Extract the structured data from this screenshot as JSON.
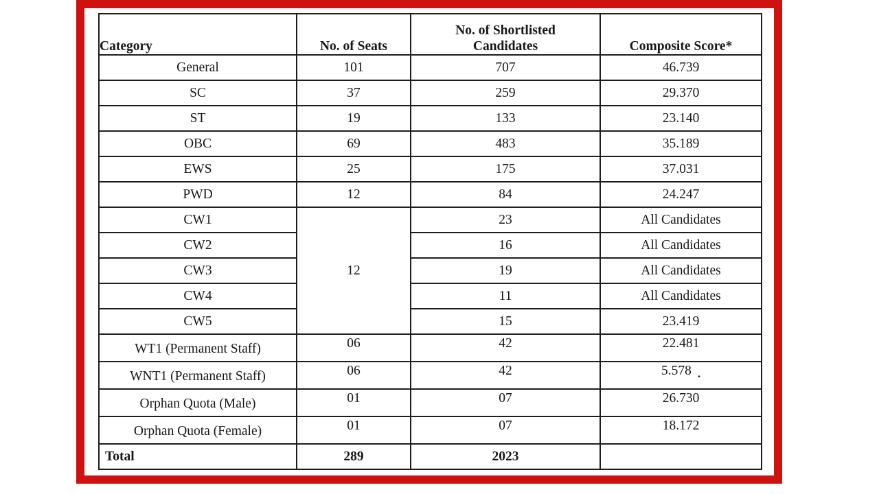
{
  "page": {
    "background": "#ffffff",
    "frame_border_color": "#cf1110",
    "table_line_color": "#1d1d1d",
    "text_color": "#17171c"
  },
  "table": {
    "headers": [
      "Category",
      "No. of Seats",
      "No. of Shortlisted Candidates",
      "Composite Score*"
    ],
    "rows": [
      {
        "category": "General",
        "seats": "101",
        "shortlisted": "707",
        "score": "46.739"
      },
      {
        "category": "SC",
        "seats": "37",
        "shortlisted": "259",
        "score": "29.370"
      },
      {
        "category": "ST",
        "seats": "19",
        "shortlisted": "133",
        "score": "23.140"
      },
      {
        "category": "OBC",
        "seats": "69",
        "shortlisted": "483",
        "score": "35.189"
      },
      {
        "category": "EWS",
        "seats": "25",
        "shortlisted": "175",
        "score": "37.031"
      },
      {
        "category": "PWD",
        "seats": "12",
        "shortlisted": "84",
        "score": "24.247"
      },
      {
        "category": "CW1",
        "seats": "12",
        "seats_rowspan": 5,
        "shortlisted": "23",
        "score": "All Candidates"
      },
      {
        "category": "CW2",
        "shortlisted": "16",
        "score": "All Candidates"
      },
      {
        "category": "CW3",
        "shortlisted": "19",
        "score": "All Candidates"
      },
      {
        "category": "CW4",
        "shortlisted": "11",
        "score": "All Candidates"
      },
      {
        "category": "CW5",
        "shortlisted": "15",
        "score": "23.419"
      },
      {
        "category": "WT1 (Permanent Staff)",
        "seats": "06",
        "shortlisted": "42",
        "score": "22.481",
        "raised": true,
        "tall": true
      },
      {
        "category": "WNT1 (Permanent Staff)",
        "seats": "06",
        "shortlisted": "42",
        "score": "5.578",
        "score_suffix": ".",
        "raised": true,
        "tall": true
      },
      {
        "category": "Orphan Quota (Male)",
        "seats": "01",
        "shortlisted": "07",
        "score": "26.730",
        "raised": true,
        "tall": true
      },
      {
        "category": "Orphan Quota (Female)",
        "seats": "01",
        "shortlisted": "07",
        "score": "18.172",
        "raised": true,
        "tall": true
      },
      {
        "category": "Total",
        "seats": "289",
        "shortlisted": "2023",
        "score": "",
        "bold": true
      }
    ]
  }
}
